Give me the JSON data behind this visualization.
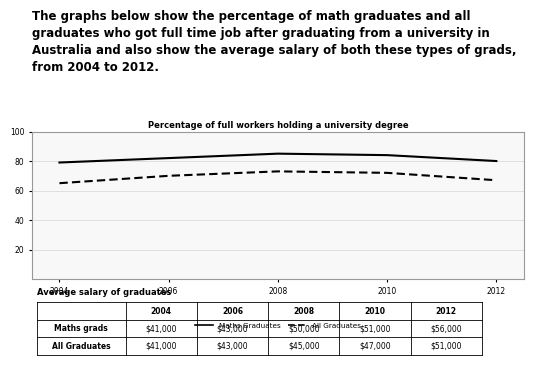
{
  "title_text": "The graphs below show the percentage of math graduates and all graduates who got full time job after graduating from a university in Australia and also show the average salary of both these types of grads, from 2004 to 2012.",
  "chart_title": "Percentage of full workers holding a university degree",
  "years": [
    2004,
    2006,
    2008,
    2010,
    2012
  ],
  "maths_pct": [
    79,
    82,
    85,
    84,
    80
  ],
  "all_pct": [
    65,
    70,
    73,
    72,
    67
  ],
  "ylim": [
    0,
    100
  ],
  "yticks": [
    20,
    40,
    60,
    80,
    100
  ],
  "table_title": "Average salary of graduates",
  "table_headers": [
    "",
    "2004",
    "2006",
    "2008",
    "2010",
    "2012"
  ],
  "table_rows": [
    [
      "Maths grads",
      "$41,000",
      "$43,000",
      "$50,000",
      "$51,000",
      "$56,000"
    ],
    [
      "All Graduates",
      "$41,000",
      "$43,000",
      "$45,000",
      "$47,000",
      "$51,000"
    ]
  ],
  "legend_maths": "Maths Graduates",
  "legend_all": "All Graduates",
  "maths_color": "#000000",
  "all_color": "#000000",
  "background_color": "#ffffff"
}
